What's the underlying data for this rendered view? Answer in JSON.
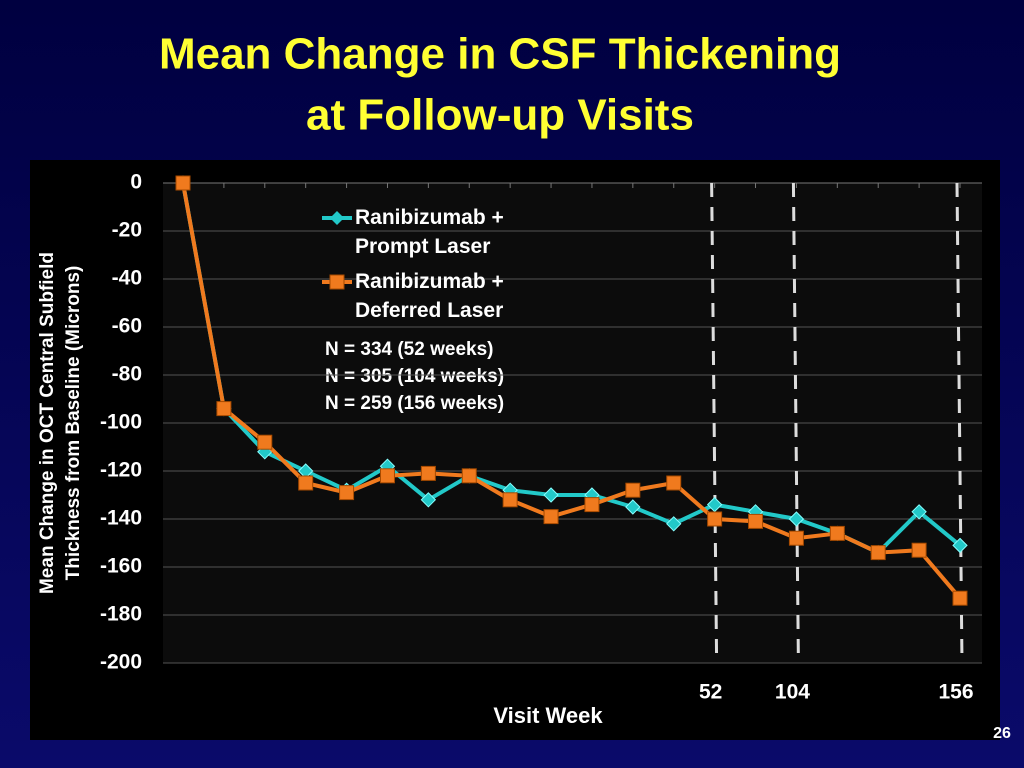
{
  "chart_data": {
    "type": "line",
    "title": [
      "Mean Change in CSF Thickening",
      "at Follow-up Visits"
    ],
    "y_label": [
      "Mean Change in OCT Central Subfield",
      "Thickness from Baseline (Microns)"
    ],
    "x_label": "Visit Week",
    "categories": [
      null,
      null,
      null,
      null,
      null,
      null,
      null,
      null,
      null,
      null,
      null,
      null,
      null,
      "52",
      null,
      "104",
      null,
      null,
      null,
      "156"
    ],
    "series": [
      {
        "name": "Ranibizumab + Prompt Laser",
        "color": "#22c9c9",
        "marker": "diamond",
        "values": [
          0,
          -94,
          -112,
          -120,
          -128,
          -118,
          -132,
          -122,
          -128,
          -130,
          -130,
          -135,
          -142,
          -134,
          -137,
          -140,
          -146,
          -154,
          -137,
          -151
        ]
      },
      {
        "name": "Ranibizumab + Deferred Laser",
        "color": "#f07a1e",
        "marker": "square",
        "values": [
          0,
          -94,
          -108,
          -125,
          -129,
          -122,
          -121,
          -122,
          -132,
          -139,
          -134,
          -128,
          -125,
          -140,
          -141,
          -148,
          -146,
          -154,
          -153,
          -173
        ]
      }
    ],
    "annotations": [
      "N = 334 (52 weeks)",
      "N = 305 (104 weeks)",
      "N = 259 (156 weeks)"
    ],
    "ylim": [
      -200,
      0
    ],
    "yticks": [
      0,
      -20,
      -40,
      -60,
      -80,
      -100,
      -120,
      -140,
      -160,
      -180,
      -200
    ],
    "grid": true,
    "legend": "upper center",
    "page_number": "26"
  }
}
